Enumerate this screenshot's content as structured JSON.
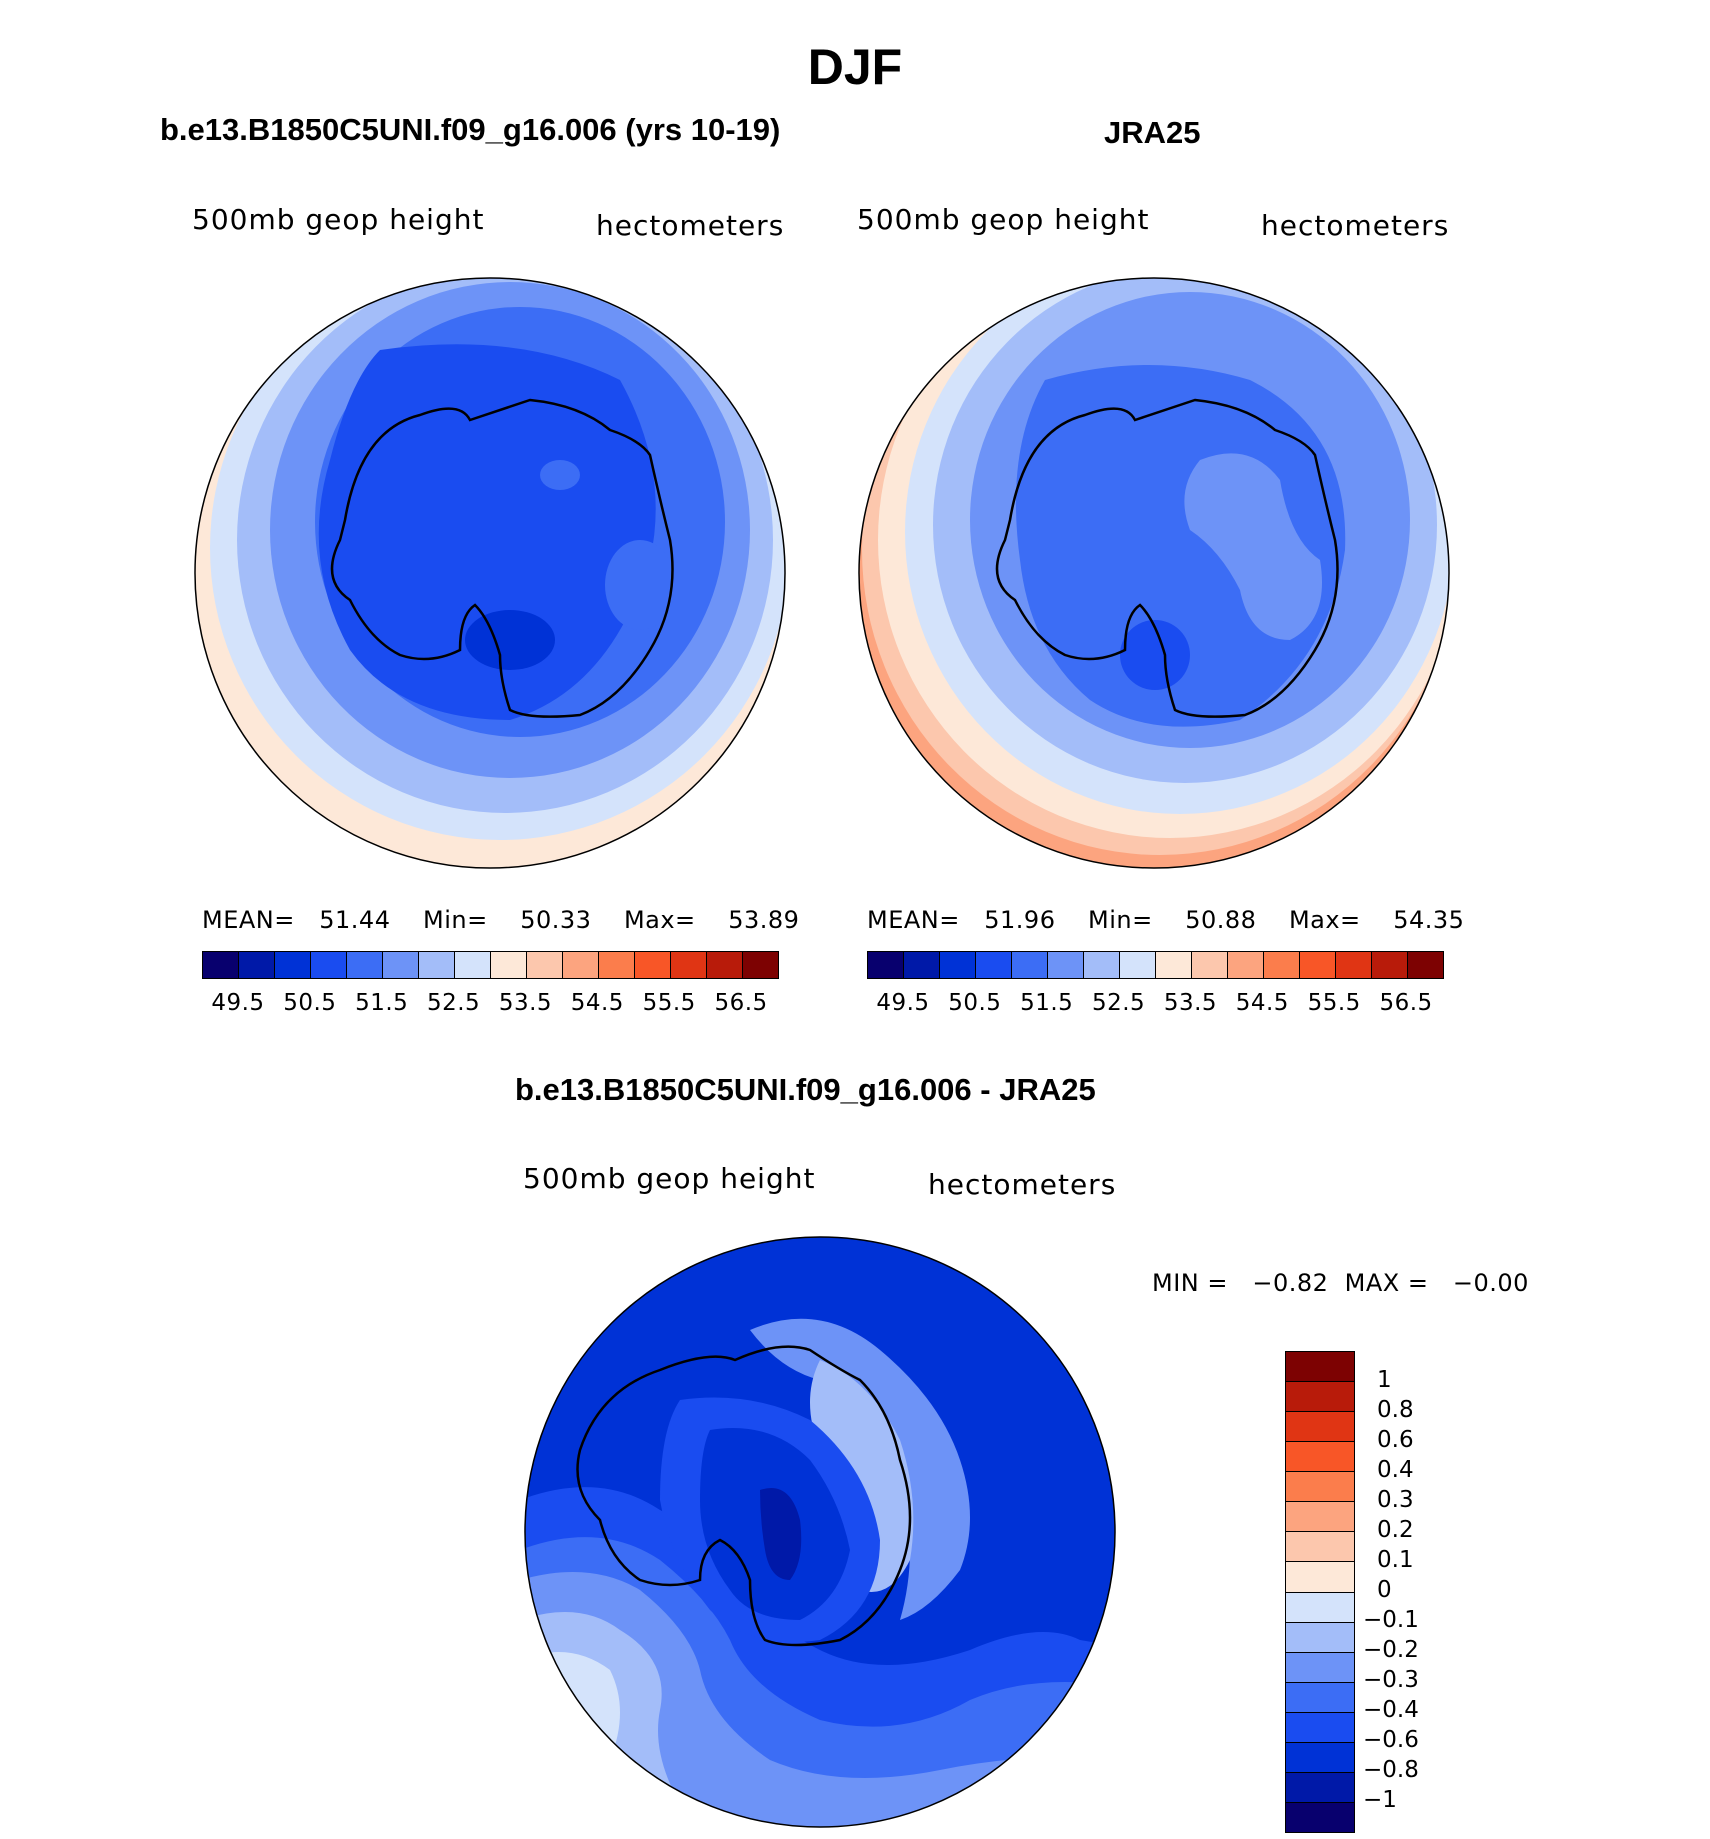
{
  "title": "DJF",
  "panels": [
    {
      "title": "b.e13.B1850C5UNI.f09_g16.006 (yrs 10-19)",
      "variable": "500mb geop height",
      "units": "hectometers",
      "stats": {
        "mean_label": "MEAN=",
        "mean": "51.44",
        "min_label": "Min=",
        "min": "50.33",
        "max_label": "Max=",
        "max": "53.89"
      }
    },
    {
      "title": "JRA25",
      "variable": "500mb geop height",
      "units": "hectometers",
      "stats": {
        "mean_label": "MEAN=",
        "mean": "51.96",
        "min_label": "Min=",
        "min": "50.88",
        "max_label": "Max=",
        "max": "54.35"
      }
    },
    {
      "title": "b.e13.B1850C5UNI.f09_g16.006 - JRA25",
      "variable": "500mb geop height",
      "units": "hectometers",
      "stats": {
        "text": "MIN =   −0.82  MAX =   −0.00"
      }
    }
  ],
  "colorbar_main": {
    "colors": [
      "#08006e",
      "#0019a8",
      "#0032d6",
      "#1a4cf0",
      "#3c6df5",
      "#6d93f7",
      "#a3bdf9",
      "#d4e3fb",
      "#fde8d8",
      "#fcc7ad",
      "#fca47f",
      "#fb7d4c",
      "#f85627",
      "#e03514",
      "#b81b0a",
      "#7d0202"
    ],
    "ticks": [
      "49.5",
      "50.5",
      "51.5",
      "52.5",
      "53.5",
      "54.5",
      "55.5",
      "56.5"
    ]
  },
  "colorbar_diff": {
    "colors": [
      "#7d0202",
      "#b81b0a",
      "#e03514",
      "#f85627",
      "#fb7d4c",
      "#fca47f",
      "#fcc7ad",
      "#fde8d8",
      "#d4e3fb",
      "#a3bdf9",
      "#6d93f7",
      "#3c6df5",
      "#1a4cf0",
      "#0032d6",
      "#0019a8",
      "#08006e"
    ],
    "ticks": [
      "1",
      "0.8",
      "0.6",
      "0.4",
      "0.3",
      "0.2",
      "0.1",
      "0",
      "−0.1",
      "−0.2",
      "−0.3",
      "−0.4",
      "−0.6",
      "−0.8",
      "−1"
    ]
  }
}
